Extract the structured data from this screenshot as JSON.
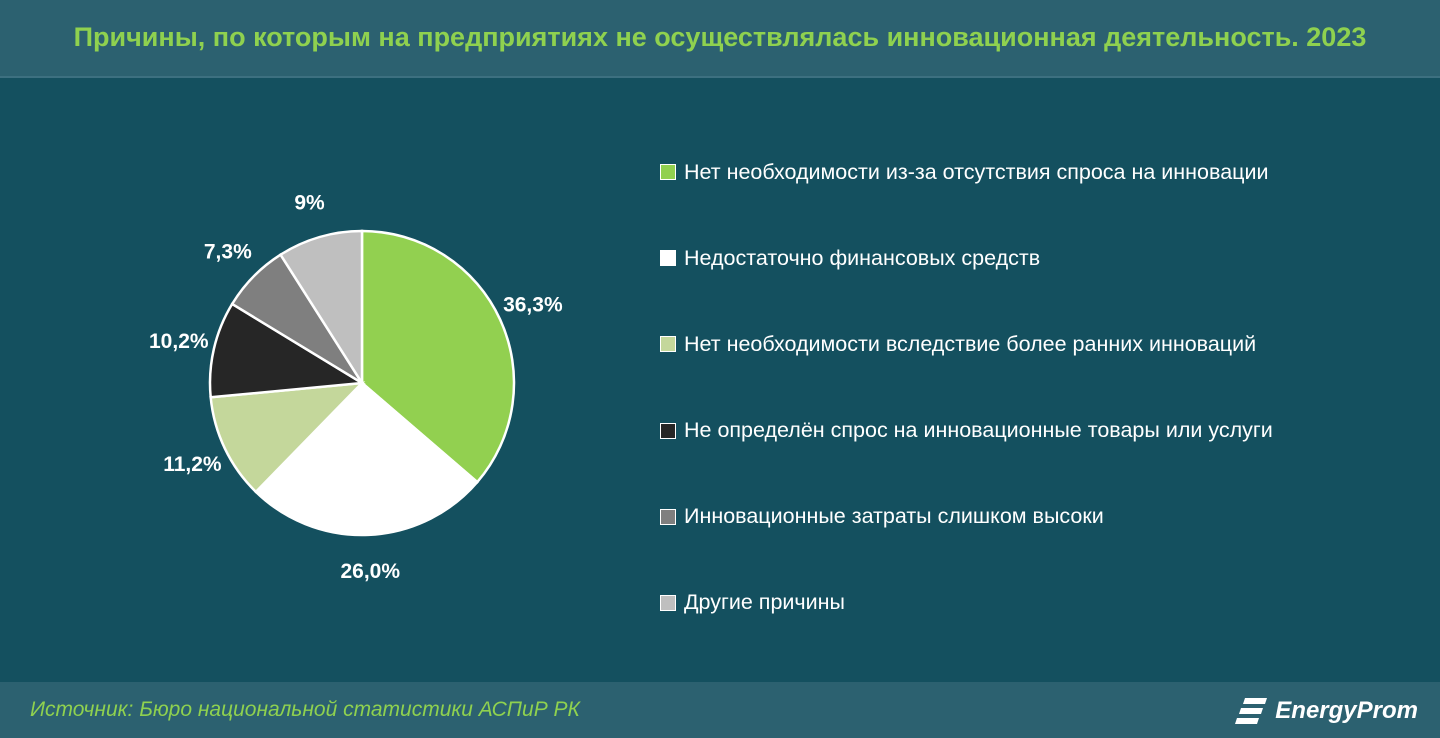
{
  "header": {
    "title": "Причины, по которым на предприятиях не осуществлялась инновационная деятельность. 2023"
  },
  "footer": {
    "source": "Источник: Бюро национальной статистики АСПиР РК",
    "logo": "EnergyProm",
    "logo_icon": "energyprom-logo-icon"
  },
  "colors": {
    "accent": "#8fd14f",
    "background": "#14505f",
    "bar": "#2c6170"
  },
  "chart_data": {
    "type": "pie",
    "title": "Причины, по которым на предприятиях не осуществлялась инновационная деятельность. 2023",
    "legend_position": "right",
    "slices": [
      {
        "name": "Нет необходимости из-за отсутствия спроса на инновации",
        "value": 36.3,
        "label": "36,3%",
        "color": "#92d050"
      },
      {
        "name": "Недостаточно финансовых средств",
        "value": 26.0,
        "label": "26,0%",
        "color": "#ffffff"
      },
      {
        "name": "Нет необходимости вследствие более ранних инноваций",
        "value": 11.2,
        "label": "11,2%",
        "color": "#c4d79b"
      },
      {
        "name": "Не определён спрос на инновационные товары или услуги",
        "value": 10.2,
        "label": "10,2%",
        "color": "#262626"
      },
      {
        "name": "Инновационные затраты слишком высоки",
        "value": 7.3,
        "label": "7,3%",
        "color": "#7f7f7f"
      },
      {
        "name": "Другие причины",
        "value": 9,
        "label": "9%",
        "color": "#bfbfbf"
      }
    ]
  }
}
